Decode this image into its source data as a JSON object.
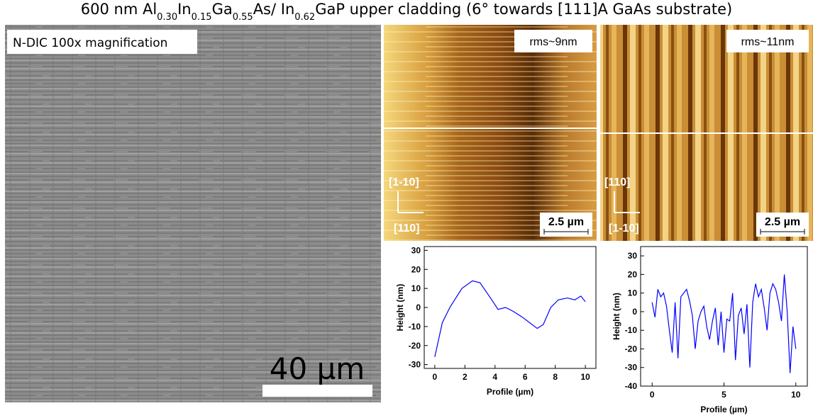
{
  "title_parts": [
    "600 nm Al",
    "0.30",
    "In",
    "0.15",
    "Ga",
    "0.55",
    "As/ In",
    "0.62",
    "GaP upper cladding (6° towards [111]A GaAs substrate)"
  ],
  "panels": {
    "dic": {
      "label": "N-DIC 100x magnification",
      "scale_bar": "40 µm"
    },
    "afm_left": {
      "rms": "rms~9nm",
      "dir_up": "[1-10]",
      "dir_right": "[110]",
      "scale_bar": "2.5 µm"
    },
    "afm_right": {
      "rms": "rms~11nm",
      "dir_up": "[110]",
      "dir_right": "[1-10]",
      "scale_bar": "2.5 µm"
    }
  },
  "chart_data": [
    {
      "type": "line",
      "xlabel": "Profile (µm)",
      "ylabel": "Height (nm)",
      "xlim": [
        -0.7,
        10.7
      ],
      "ylim": [
        -32,
        32
      ],
      "xticks": [
        0,
        2,
        4,
        6,
        8,
        10
      ],
      "yticks": [
        -30,
        -20,
        -10,
        0,
        10,
        20,
        30
      ],
      "series": [
        {
          "color": "#0000ff",
          "x": [
            0,
            0.5,
            1,
            1.8,
            2.5,
            3,
            3.7,
            4.2,
            4.7,
            5.2,
            5.8,
            6.3,
            6.8,
            7.2,
            7.7,
            8.2,
            8.8,
            9.3,
            9.7,
            10
          ],
          "values": [
            -26,
            -8,
            0,
            10,
            14,
            13,
            5,
            -1,
            0,
            -2,
            -5,
            -8,
            -11,
            -9,
            0,
            4,
            5,
            4,
            6,
            3
          ]
        }
      ]
    },
    {
      "type": "line",
      "xlabel": "Profile (µm)",
      "ylabel": "Height (nm)",
      "xlim": [
        -0.8,
        10.8
      ],
      "ylim": [
        -40,
        35
      ],
      "xticks": [
        0,
        5,
        10
      ],
      "yticks": [
        -40,
        -30,
        -20,
        -10,
        0,
        10,
        20,
        30
      ],
      "series": [
        {
          "color": "#0000ff",
          "x": [
            0,
            0.2,
            0.4,
            0.6,
            0.8,
            1,
            1.2,
            1.4,
            1.6,
            1.8,
            2,
            2.2,
            2.4,
            2.6,
            2.8,
            3,
            3.2,
            3.4,
            3.6,
            3.8,
            4,
            4.2,
            4.4,
            4.6,
            4.8,
            5,
            5.2,
            5.4,
            5.6,
            5.8,
            6,
            6.2,
            6.4,
            6.6,
            6.8,
            7,
            7.2,
            7.4,
            7.6,
            7.8,
            8,
            8.2,
            8.4,
            8.6,
            8.8,
            9,
            9.2,
            9.4,
            9.6,
            9.8,
            10
          ],
          "values": [
            5,
            -3,
            12,
            8,
            10,
            3,
            -10,
            -22,
            5,
            -25,
            8,
            10,
            12,
            6,
            -2,
            -20,
            -5,
            0,
            3,
            -8,
            -15,
            -5,
            2,
            -18,
            0,
            -22,
            -4,
            -5,
            10,
            -26,
            -2,
            2,
            -12,
            4,
            -30,
            5,
            15,
            8,
            12,
            2,
            -10,
            10,
            15,
            12,
            5,
            -5,
            20,
            0,
            -33,
            -8,
            -20
          ]
        }
      ]
    }
  ]
}
